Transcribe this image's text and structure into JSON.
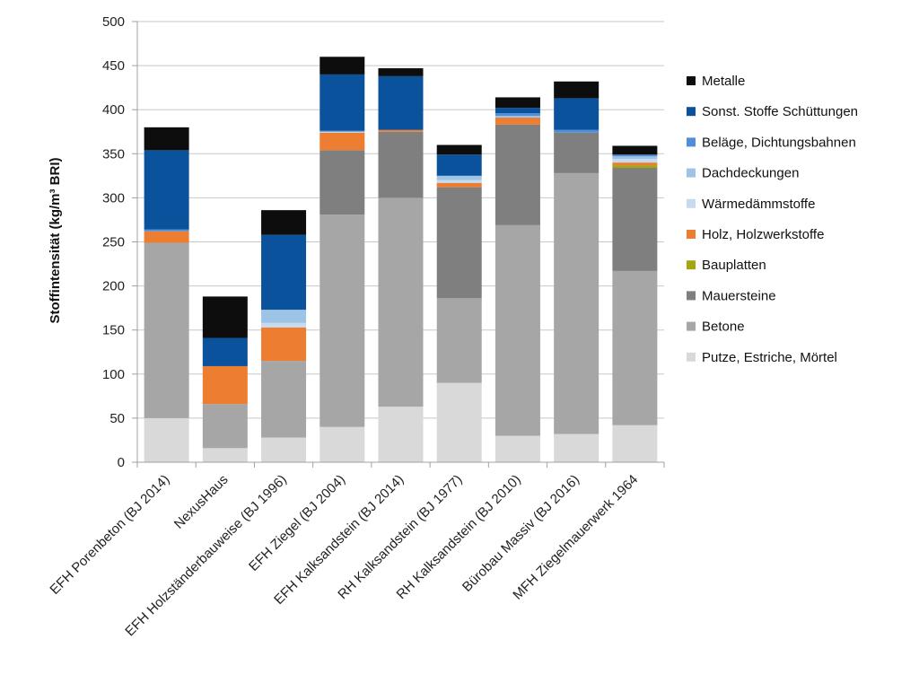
{
  "chart_data": {
    "type": "bar",
    "stacked": true,
    "ylabel": "Stoffintensität (kg/m³ BRI)",
    "ylim": [
      0,
      500
    ],
    "ytick_step": 50,
    "grid": true,
    "legend_position": "right",
    "categories": [
      "EFH Porenbeton (BJ 2014)",
      "NexusHaus",
      "EFH Holzständerbauweise (BJ 1996)",
      "EFH Ziegel (BJ 2004)",
      "EFH Kalksandstein (BJ 2014)",
      "RH Kalksandstein (BJ 1977)",
      "RH Kalksandstein (BJ 2010)",
      "Bürobau Massiv (BJ 2016)",
      "MFH Ziegelmauerwerk 1964"
    ],
    "series": [
      {
        "name": "Putze, Estriche, Mörtel",
        "color": "#d9d9d9",
        "values": [
          50,
          16,
          28,
          40,
          63,
          90,
          30,
          32,
          42
        ]
      },
      {
        "name": "Betone",
        "color": "#a6a6a6",
        "values": [
          199,
          50,
          87,
          241,
          237,
          96,
          239,
          296,
          175
        ]
      },
      {
        "name": "Mauersteine",
        "color": "#7f7f7f",
        "values": [
          0,
          0,
          0,
          73,
          75,
          126,
          114,
          46,
          117
        ]
      },
      {
        "name": "Bauplatten",
        "color": "#a5a511",
        "values": [
          0,
          0,
          0,
          0,
          0,
          0,
          0,
          0,
          3
        ]
      },
      {
        "name": "Holz, Holzwerkstoffe",
        "color": "#ed7d31",
        "values": [
          13,
          43,
          38,
          20,
          2,
          5,
          8,
          0,
          3
        ]
      },
      {
        "name": "Wärmedämmstoffe",
        "color": "#c5dcf0",
        "values": [
          0,
          0,
          5,
          1,
          0,
          3,
          0,
          0,
          4
        ]
      },
      {
        "name": "Dachdeckungen",
        "color": "#9dc3e6",
        "values": [
          0,
          0,
          15,
          0,
          0,
          5,
          2,
          0,
          3
        ]
      },
      {
        "name": "Beläge, Dichtungsbahnen",
        "color": "#4f8ed9",
        "values": [
          2,
          0,
          0,
          1,
          0,
          0,
          3,
          3,
          2
        ]
      },
      {
        "name": "Sonst. Stoffe Schüttungen",
        "color": "#0b529c",
        "values": [
          90,
          32,
          85,
          64,
          61,
          24,
          6,
          36,
          0
        ]
      },
      {
        "name": "Metalle",
        "color": "#0d0d0d",
        "values": [
          26,
          47,
          28,
          20,
          9,
          11,
          12,
          19,
          10
        ]
      }
    ]
  }
}
